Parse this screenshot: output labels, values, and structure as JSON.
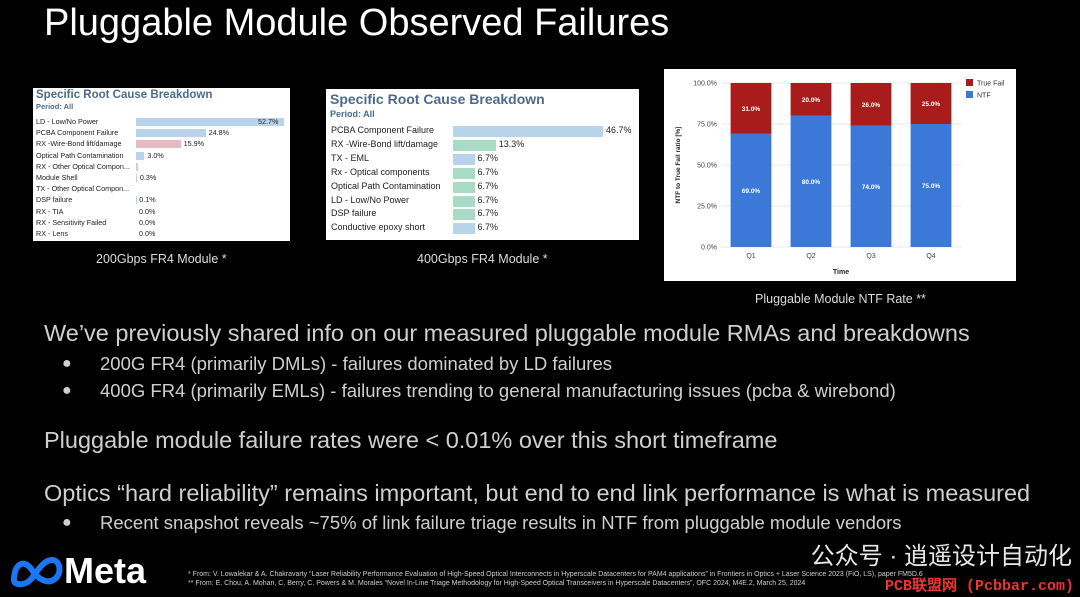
{
  "title": "Pluggable Module Observed Failures",
  "panel1": {
    "title": "Specific Root Cause Breakdown",
    "period": "Period: All",
    "caption": "200Gbps FR4 Module *",
    "rows": [
      {
        "label": "LD - Low/No Power",
        "value": "52.7%",
        "pct": 52.7,
        "color": "#b9d3ea"
      },
      {
        "label": "PCBA Component Failure",
        "value": "24.8%",
        "pct": 24.8,
        "color": "#b9d3ea"
      },
      {
        "label": "RX -Wire-Bond lift/damage",
        "value": "15.9%",
        "pct": 15.9,
        "color": "#e7b9c3"
      },
      {
        "label": "Optical Path Contamination",
        "value": "3.0%",
        "pct": 3.0,
        "color": "#b9d3ea"
      },
      {
        "label": "RX - Other Optical Compon...",
        "value": "",
        "pct": 0.6,
        "color": "#b9d3ea"
      },
      {
        "label": "Module Shell",
        "value": "0.3%",
        "pct": 0.3,
        "color": "#b9d3ea"
      },
      {
        "label": "TX - Other Optical Compon...",
        "value": "",
        "pct": 0,
        "color": "#b9d3ea"
      },
      {
        "label": "DSP failure",
        "value": "0.1%",
        "pct": 0.1,
        "color": "#b9d3ea"
      },
      {
        "label": "RX - TIA",
        "value": "0.0%",
        "pct": 0,
        "color": "#b9d3ea"
      },
      {
        "label": "RX - Sensitivity Failed",
        "value": "0.0%",
        "pct": 0,
        "color": "#b9d3ea"
      },
      {
        "label": "RX - Lens",
        "value": "0.0%",
        "pct": 0,
        "color": "#b9d3ea"
      }
    ]
  },
  "panel2": {
    "title": "Specific Root Cause Breakdown",
    "period": "Period: All",
    "caption": "400Gbps FR4 Module  *",
    "rows": [
      {
        "label": "PCBA Component Failure",
        "value": "46.7%",
        "pct": 46.7,
        "color": "#b9d3ea"
      },
      {
        "label": "RX -Wire-Bond lift/damage",
        "value": "13.3%",
        "pct": 13.3,
        "color": "#a8dcc6"
      },
      {
        "label": "TX - EML",
        "value": "6.7%",
        "pct": 6.7,
        "color": "#b9d3ea"
      },
      {
        "label": "Rx - Optical components",
        "value": "6.7%",
        "pct": 6.7,
        "color": "#a8dcc6"
      },
      {
        "label": "Optical Path Contamination",
        "value": "6.7%",
        "pct": 6.7,
        "color": "#a8dcc6"
      },
      {
        "label": "LD - Low/No Power",
        "value": "6.7%",
        "pct": 6.7,
        "color": "#a8dcc6"
      },
      {
        "label": "DSP failure",
        "value": "6.7%",
        "pct": 6.7,
        "color": "#a8dcc6"
      },
      {
        "label": "Conductive epoxy short",
        "value": "6.7%",
        "pct": 6.7,
        "color": "#b9d3ea"
      }
    ]
  },
  "chart_caption": "Pluggable Module NTF Rate **",
  "chart_data": {
    "type": "bar",
    "stacked": true,
    "categories": [
      "Q1",
      "Q2",
      "Q3",
      "Q4"
    ],
    "series": [
      {
        "name": "NTF",
        "values": [
          69.0,
          80.0,
          74.0,
          75.0
        ],
        "labels": [
          "69.0%",
          "80.0%",
          "74.0%",
          "75.0%"
        ],
        "color": "#3b78d8"
      },
      {
        "name": "True Fail",
        "values": [
          31.0,
          20.0,
          26.0,
          25.0
        ],
        "labels": [
          "31.0%",
          "20.0%",
          "26.0%",
          "25.0%"
        ],
        "color": "#a81c1c"
      }
    ],
    "ylim": [
      0,
      100
    ],
    "yticks": [
      "0.0%",
      "25.0%",
      "50.0%",
      "75.0%",
      "100.0%"
    ],
    "xlabel": "Time",
    "ylabel": "NTF to True Fail ratio [%]",
    "legend": "top-right",
    "grid": true
  },
  "body": {
    "p1": "We’ve previously shared info on our measured pluggable module RMAs and breakdowns",
    "p1_bullets": [
      "200G FR4 (primarily DMLs) - failures dominated by LD failures",
      "400G FR4 (primarily EMLs) - failures trending to general manufacturing issues (pcba & wirebond)"
    ],
    "p2": "Pluggable module failure rates were < 0.01% over this short timeframe",
    "p3": "Optics “hard reliability” remains important, but end to end link performance is what is measured",
    "p3_bullets": [
      "Recent snapshot reveals ~75% of link failure triage results in NTF from pluggable module vendors"
    ]
  },
  "logo": "Meta",
  "footnotes": [
    "* From: V. Lowalekar & A. Chakravarty “Laser Reliability Performance Evaluation of High-Speed Optical Interconnects in Hyperscale Datacenters for PAM4 applications” in Frontiers in Optics + Laser Science 2023 (FiO, LS), paper FM5D.6",
    "** From: E. Chou, A. Mohan, C. Berry, C. Powers & M. Morales  “Novel In-Line Triage Methodology for High-Speed Optical Transceivers in Hyperscale Datacenters”, OFC 2024, M4E.2, March 25, 2024"
  ],
  "watermark": "公众号 · 逍遥设计自动化",
  "pcb_mark": "PCB联盟网 (Pcbbar.com)"
}
